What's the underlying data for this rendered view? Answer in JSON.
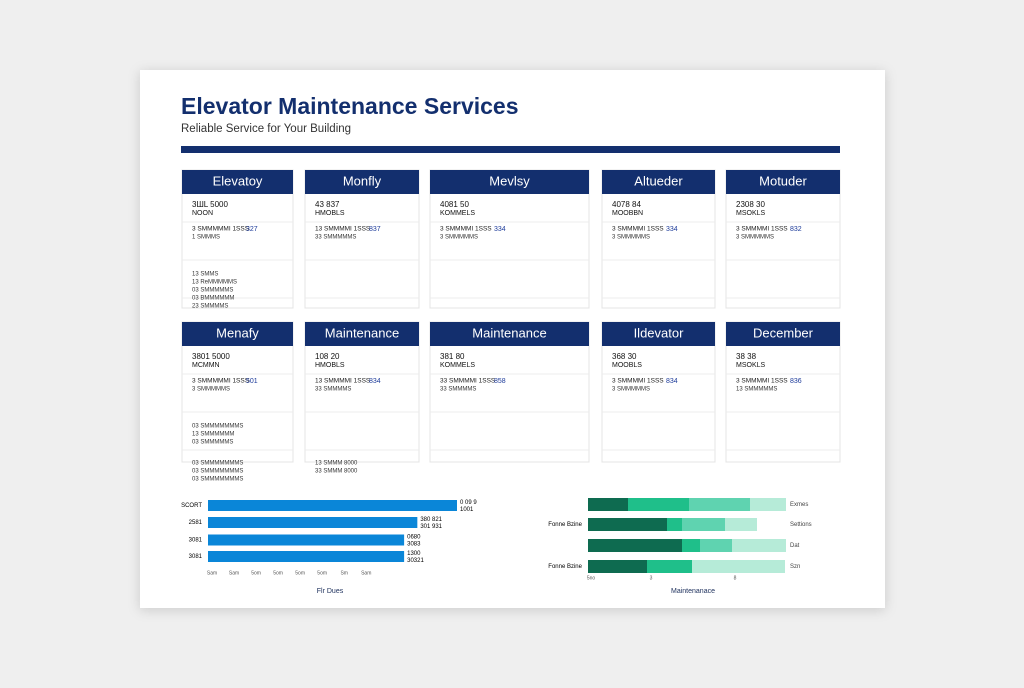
{
  "header": {
    "title": "Elevator Maintenance Services",
    "subtitle": "Reliable Service for Your Building"
  },
  "cards": [
    {
      "title": "Elevatoy",
      "code": "3ШL 5000",
      "label": "NOON",
      "lead": "3  SMMMMMI 1SSS",
      "amount": "327",
      "items": [
        [
          "1  SMMMS"
        ],
        [
          "13  SMMS",
          "13  ReMMMMMS",
          "03  SMMMMMS",
          "03  BMMMMMM",
          "23  SMMMMS"
        ]
      ]
    },
    {
      "title": "Monfly",
      "code": "43 837",
      "label": "HMOBLS",
      "lead": "13  SMMMMI 1SSS",
      "amount": "837",
      "items": [
        [
          "33  SMMMMMS"
        ]
      ]
    },
    {
      "title": "Mevlsy",
      "code": "4081 50",
      "label": "KOMMELS",
      "lead": "3  SMMMMI 1SSS",
      "amount": "334",
      "items": [
        [
          "3  SMMMMMS"
        ]
      ]
    },
    {
      "title": "Altueder",
      "code": "4078 84",
      "label": "MOOBBN",
      "lead": "3  SMMMMI 1SSS",
      "amount": "334",
      "items": [
        [
          "3  SMMMMMS"
        ]
      ]
    },
    {
      "title": "Motuder",
      "code": "2308 30",
      "label": "MSOKLS",
      "lead": "3  SMMMMI 1SSS",
      "amount": "832",
      "items": [
        [
          "3  SMMMMMS"
        ]
      ]
    },
    {
      "title": "Menafy",
      "code": "3801 5000",
      "label": "MCMMN",
      "lead": "3  SMMMMMI 1SSS",
      "amount": "501",
      "items": [
        [
          "3  SMMMMMS"
        ],
        [
          "03  SMMMMMMMS",
          "13  SMMMMMM",
          "03  SMMMMMS"
        ],
        [
          "03  SMMMMMMMS",
          "03  SMMMMMMMS",
          "03  SMMMMMMMS"
        ]
      ]
    },
    {
      "title": "Maintenance",
      "code": "108 20",
      "label": "HMOBLS",
      "lead": "13  SMMMMI 1SSS",
      "amount": "834",
      "items": [
        [
          "33  SMMMMS"
        ],
        [],
        [
          "13  SMMM 8000",
          "33  SMMM 8000"
        ]
      ]
    },
    {
      "title": "Maintenance",
      "code": "381 80",
      "label": "KOMMELS",
      "lead": "33  SMMMMI 1SSS",
      "amount": "858",
      "items": [
        [
          "33  SMMMMS"
        ]
      ]
    },
    {
      "title": "Ildevator",
      "code": "368 30",
      "label": "MOOBLS",
      "lead": "3  SMMMMI 1SSS",
      "amount": "834",
      "items": [
        [
          "3  SMMMMMS"
        ]
      ]
    },
    {
      "title": "December",
      "code": "38 38",
      "label": "MSOKLS",
      "lead": "3  SMMMMI 1SSS",
      "amount": "836",
      "items": [
        [
          "13  SMMMMMS"
        ]
      ]
    }
  ],
  "bar_chart": {
    "type": "bar",
    "xlabel": "Flr Dues",
    "color": "#0a86d8",
    "categories": [
      "SCORT",
      "2581",
      "3081",
      "3081"
    ],
    "values": [
      113,
      95,
      89,
      89
    ],
    "annotations": [
      [
        "0 09 9",
        "1001"
      ],
      [
        "380 821",
        "301 931"
      ],
      [
        "0680",
        "3083"
      ],
      [
        "1300",
        "30321"
      ]
    ],
    "xlim": [
      0,
      113
    ],
    "xticks": [
      {
        "value": 0,
        "label": "Sam"
      },
      {
        "value": 10,
        "label": "Sam"
      },
      {
        "value": 20,
        "label": "5om"
      },
      {
        "value": 30,
        "label": "5om"
      },
      {
        "value": 40,
        "label": "5om"
      },
      {
        "value": 50,
        "label": "5om"
      },
      {
        "value": 60,
        "label": "Sm"
      },
      {
        "value": 70,
        "label": "Sam"
      }
    ]
  },
  "stack_chart": {
    "type": "stacked-bar",
    "xlabel": "Maintenanace",
    "categories": [
      null,
      "Fonne Bzine",
      null,
      "Fonne Bzine"
    ],
    "right_labels": [
      "Exmes",
      "Settions",
      "Dat",
      "Szn"
    ],
    "xlim": [
      0,
      100
    ],
    "xticks": [
      {
        "value": 0,
        "label": "5no"
      },
      {
        "value": 30,
        "label": "3"
      },
      {
        "value": 72,
        "label": "8"
      }
    ],
    "series": [
      {
        "color": "#0e6b50",
        "values": [
          20,
          39.5,
          47,
          29.5
        ]
      },
      {
        "color": "#1fbf8a",
        "values": [
          30.5,
          7.5,
          9,
          22.5
        ]
      },
      {
        "color": "#5fd3b0",
        "values": [
          30.5,
          21.5,
          16,
          0
        ]
      },
      {
        "color": "#b6ebd8",
        "values": [
          18,
          16,
          27,
          46.5
        ]
      }
    ]
  }
}
